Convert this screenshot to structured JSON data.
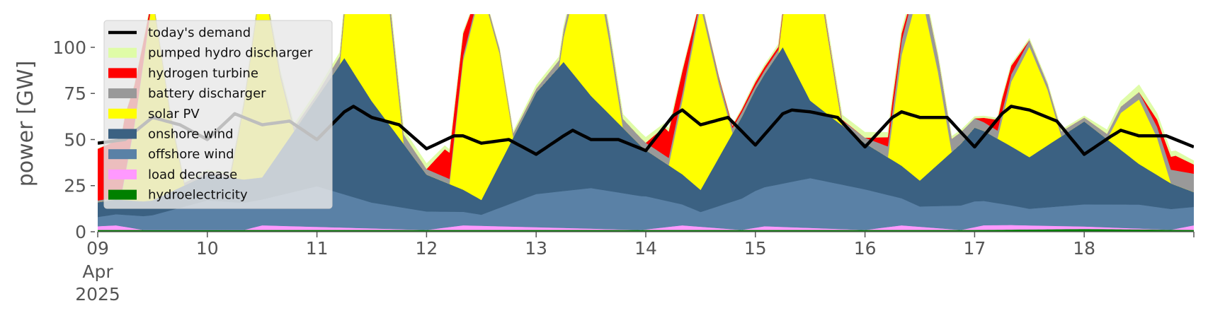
{
  "chart_data": {
    "type": "area",
    "title": "",
    "xlabel": "",
    "ylabel": "power [GW]",
    "ylim": [
      0,
      118
    ],
    "yticks": [
      0,
      25,
      50,
      75,
      100
    ],
    "grid": false,
    "legend_position": "top-left",
    "x_start": "2025-04-09",
    "x_end": "2025-04-19",
    "x_ticks": [
      {
        "label": "09",
        "sub": [
          "Apr",
          "2025"
        ]
      },
      {
        "label": "10"
      },
      {
        "label": "11"
      },
      {
        "label": "12"
      },
      {
        "label": "13"
      },
      {
        "label": "14"
      },
      {
        "label": "15"
      },
      {
        "label": "16"
      },
      {
        "label": "17"
      },
      {
        "label": "18"
      }
    ],
    "stacked_order_bottom_to_top": [
      "hydroelectricity",
      "load decrease",
      "offshore wind",
      "onshore wind",
      "solar PV",
      "battery discharger",
      "hydrogen turbine",
      "pumped hydro discharger"
    ],
    "series": [
      {
        "name": "hydroelectricity",
        "color": "#008000",
        "x": [
          "2025-04-09 00:00",
          "2025-04-11 00:00",
          "2025-04-14 00:00",
          "2025-04-17 00:00",
          "2025-04-18 00:00",
          "2025-04-19 00:00"
        ],
        "values": [
          1,
          1,
          1,
          1,
          1.5,
          1
        ]
      },
      {
        "name": "load decrease",
        "color": "#ff99ff",
        "x": [
          "2025-04-09 00:00",
          "2025-04-09 04:00",
          "2025-04-09 10:00",
          "2025-04-10 08:00",
          "2025-04-10 12:00",
          "2025-04-12 00:00",
          "2025-04-12 08:00",
          "2025-04-13 23:00",
          "2025-04-14 08:00",
          "2025-04-14 21:00",
          "2025-04-15 02:00",
          "2025-04-16 00:00",
          "2025-04-16 08:00",
          "2025-04-16 21:00",
          "2025-04-17 02:00",
          "2025-04-17 08:00",
          "2025-04-18 19:00",
          "2025-04-19 00:00"
        ],
        "values": [
          2,
          2.5,
          0,
          0,
          2.5,
          0,
          2.5,
          0,
          2.5,
          0,
          2,
          0,
          2.5,
          0,
          2.5,
          2.5,
          0,
          2.5
        ]
      },
      {
        "name": "offshore wind",
        "color": "#5a81a6",
        "x": [
          "2025-04-09 00:00",
          "2025-04-09 12:00",
          "2025-04-10 00:00",
          "2025-04-10 12:00",
          "2025-04-11 00:00",
          "2025-04-11 12:00",
          "2025-04-12 00:00",
          "2025-04-12 12:00",
          "2025-04-13 00:00",
          "2025-04-13 12:00",
          "2025-04-14 00:00",
          "2025-04-14 12:00",
          "2025-04-15 00:00",
          "2025-04-15 12:00",
          "2025-04-16 00:00",
          "2025-04-16 12:00",
          "2025-04-17 00:00",
          "2025-04-17 12:00",
          "2025-04-18 00:00",
          "2025-04-18 12:00",
          "2025-04-19 00:00"
        ],
        "values": [
          5,
          8,
          16,
          14,
          22,
          14,
          10,
          6,
          18,
          22,
          18,
          8,
          20,
          27,
          22,
          11,
          14,
          9,
          12,
          13,
          10
        ]
      },
      {
        "name": "onshore wind",
        "color": "#3b6182",
        "x": [
          "2025-04-09 00:00",
          "2025-04-09 12:00",
          "2025-04-10 00:00",
          "2025-04-10 12:00",
          "2025-04-11 00:00",
          "2025-04-11 06:00",
          "2025-04-11 12:00",
          "2025-04-12 00:00",
          "2025-04-12 12:00",
          "2025-04-13 00:00",
          "2025-04-13 06:00",
          "2025-04-13 12:00",
          "2025-04-14 00:00",
          "2025-04-14 12:00",
          "2025-04-15 00:00",
          "2025-04-15 06:00",
          "2025-04-15 12:00",
          "2025-04-16 00:00",
          "2025-04-16 12:00",
          "2025-04-17 00:00",
          "2025-04-17 12:00",
          "2025-04-18 00:00",
          "2025-04-18 12:00",
          "2025-04-19 00:00"
        ],
        "values": [
          8,
          8,
          14,
          12,
          48,
          74,
          55,
          20,
          8,
          55,
          70,
          50,
          25,
          12,
          55,
          74,
          42,
          25,
          14,
          40,
          28,
          45,
          22,
          8
        ]
      },
      {
        "name": "solar PV",
        "color": "#ffff00",
        "x": [
          "2025-04-09 00:00",
          "2025-04-09 05:00",
          "2025-04-09 08:00",
          "2025-04-09 12:00",
          "2025-04-09 16:00",
          "2025-04-09 19:00",
          "2025-04-10 05:00",
          "2025-04-10 08:00",
          "2025-04-10 12:00",
          "2025-04-10 16:00",
          "2025-04-10 19:00",
          "2025-04-11 05:00",
          "2025-04-11 08:00",
          "2025-04-11 12:00",
          "2025-04-11 16:00",
          "2025-04-11 19:00",
          "2025-04-12 05:00",
          "2025-04-12 08:00",
          "2025-04-12 12:00",
          "2025-04-12 16:00",
          "2025-04-12 19:00",
          "2025-04-13 05:00",
          "2025-04-13 08:00",
          "2025-04-13 12:00",
          "2025-04-13 16:00",
          "2025-04-13 19:00",
          "2025-04-14 05:00",
          "2025-04-14 08:00",
          "2025-04-14 12:00",
          "2025-04-14 16:00",
          "2025-04-14 19:00",
          "2025-04-15 05:00",
          "2025-04-15 08:00",
          "2025-04-15 12:00",
          "2025-04-15 16:00",
          "2025-04-15 19:00",
          "2025-04-16 05:00",
          "2025-04-16 08:00",
          "2025-04-16 12:00",
          "2025-04-16 16:00",
          "2025-04-16 19:00",
          "2025-04-17 05:00",
          "2025-04-17 08:00",
          "2025-04-17 12:00",
          "2025-04-17 16:00",
          "2025-04-17 19:00",
          "2025-04-18 05:00",
          "2025-04-18 08:00",
          "2025-04-18 12:00",
          "2025-04-18 16:00",
          "2025-04-18 19:00",
          "2025-04-19 00:00"
        ],
        "values": [
          0,
          0,
          40,
          110,
          40,
          0,
          0,
          40,
          110,
          40,
          0,
          0,
          70,
          115,
          60,
          0,
          0,
          70,
          115,
          60,
          0,
          0,
          40,
          85,
          40,
          0,
          0,
          40,
          100,
          40,
          0,
          0,
          50,
          95,
          40,
          0,
          0,
          60,
          105,
          50,
          0,
          0,
          35,
          60,
          30,
          0,
          0,
          20,
          35,
          20,
          0,
          0
        ]
      },
      {
        "name": "battery discharger",
        "color": "#999999",
        "x": [
          "2025-04-09 00:00",
          "2025-04-11 00:00",
          "2025-04-11 12:00",
          "2025-04-12 00:00",
          "2025-04-13 00:00",
          "2025-04-13 12:00",
          "2025-04-14 00:00",
          "2025-04-14 12:00",
          "2025-04-15 00:00",
          "2025-04-16 00:00",
          "2025-04-16 12:00",
          "2025-04-17 00:00",
          "2025-04-18 00:00",
          "2025-04-18 12:00",
          "2025-04-19 00:00"
        ],
        "values": [
          1,
          2,
          8,
          3,
          2,
          6,
          4,
          4,
          2,
          3,
          10,
          5,
          2,
          4,
          10
        ]
      },
      {
        "name": "hydrogen turbine",
        "color": "#ff0000",
        "x": [
          "2025-04-09 00:00",
          "2025-04-09 06:00",
          "2025-04-09 12:00",
          "2025-04-10 00:00",
          "2025-04-12 00:00",
          "2025-04-12 04:00",
          "2025-04-12 08:00",
          "2025-04-12 12:00",
          "2025-04-14 00:00",
          "2025-04-14 04:00",
          "2025-04-14 08:00",
          "2025-04-14 12:00",
          "2025-04-15 00:00",
          "2025-04-16 00:00",
          "2025-04-16 06:00",
          "2025-04-16 12:00",
          "2025-04-17 00:00",
          "2025-04-17 06:00",
          "2025-04-17 12:00",
          "2025-04-18 12:00",
          "2025-04-18 20:00",
          "2025-04-19 00:00"
        ],
        "values": [
          28,
          32,
          0,
          0,
          0,
          15,
          12,
          0,
          0,
          15,
          12,
          0,
          2,
          0,
          6,
          0,
          0,
          7,
          0,
          0,
          8,
          5
        ]
      },
      {
        "name": "pumped hydro discharger",
        "color": "#dffca7",
        "x": [
          "2025-04-09 00:00",
          "2025-04-11 00:00",
          "2025-04-12 00:00",
          "2025-04-12 12:00",
          "2025-04-13 00:00",
          "2025-04-13 12:00",
          "2025-04-14 00:00",
          "2025-04-14 12:00",
          "2025-04-15 00:00",
          "2025-04-16 00:00",
          "2025-04-16 12:00",
          "2025-04-17 00:00",
          "2025-04-18 00:00",
          "2025-04-18 12:00",
          "2025-04-19 00:00"
        ],
        "values": [
          0,
          2,
          3,
          0,
          2,
          2,
          3,
          0,
          1,
          3,
          2,
          1,
          1,
          4,
          2
        ]
      },
      {
        "name": "today's demand",
        "type": "line",
        "color": "#000000",
        "x": [
          "2025-04-09 00:00",
          "2025-04-09 06:00",
          "2025-04-09 12:00",
          "2025-04-09 18:00",
          "2025-04-10 00:00",
          "2025-04-10 06:00",
          "2025-04-10 12:00",
          "2025-04-10 18:00",
          "2025-04-11 00:00",
          "2025-04-11 06:00",
          "2025-04-11 08:00",
          "2025-04-11 12:00",
          "2025-04-11 18:00",
          "2025-04-12 00:00",
          "2025-04-12 06:00",
          "2025-04-12 08:00",
          "2025-04-12 12:00",
          "2025-04-12 18:00",
          "2025-04-13 00:00",
          "2025-04-13 06:00",
          "2025-04-13 08:00",
          "2025-04-13 12:00",
          "2025-04-13 18:00",
          "2025-04-14 00:00",
          "2025-04-14 06:00",
          "2025-04-14 08:00",
          "2025-04-14 12:00",
          "2025-04-14 18:00",
          "2025-04-15 00:00",
          "2025-04-15 06:00",
          "2025-04-15 08:00",
          "2025-04-15 12:00",
          "2025-04-15 18:00",
          "2025-04-16 00:00",
          "2025-04-16 06:00",
          "2025-04-16 08:00",
          "2025-04-16 12:00",
          "2025-04-16 18:00",
          "2025-04-17 00:00",
          "2025-04-17 06:00",
          "2025-04-17 08:00",
          "2025-04-17 12:00",
          "2025-04-17 18:00",
          "2025-04-18 00:00",
          "2025-04-18 06:00",
          "2025-04-18 08:00",
          "2025-04-18 12:00",
          "2025-04-18 18:00",
          "2025-04-19 00:00"
        ],
        "values": [
          48,
          50,
          62,
          58,
          50,
          64,
          58,
          60,
          50,
          65,
          68,
          62,
          58,
          45,
          52,
          52,
          48,
          50,
          42,
          52,
          55,
          50,
          50,
          44,
          63,
          66,
          58,
          62,
          47,
          64,
          66,
          65,
          62,
          46,
          62,
          65,
          62,
          62,
          46,
          64,
          68,
          66,
          60,
          42,
          52,
          55,
          52,
          52,
          46
        ]
      }
    ]
  }
}
